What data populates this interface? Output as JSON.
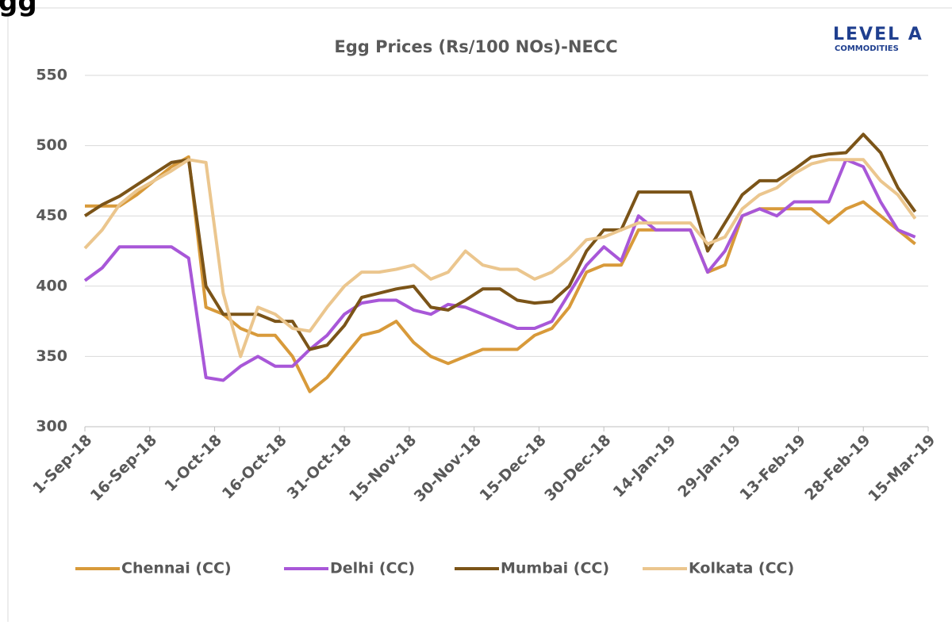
{
  "header": "gg",
  "logo": {
    "brand": "LEVEL A",
    "sub": "COMMODITIES"
  },
  "chart_data": {
    "type": "line",
    "title": "Egg Prices (Rs/100 NOs)-NECC",
    "x": [
      "2018-09-01",
      "2018-09-05",
      "2018-09-09",
      "2018-09-13",
      "2018-09-17",
      "2018-09-21",
      "2018-09-25",
      "2018-09-29",
      "2018-10-03",
      "2018-10-07",
      "2018-10-11",
      "2018-10-15",
      "2018-10-19",
      "2018-10-23",
      "2018-10-27",
      "2018-10-31",
      "2018-11-04",
      "2018-11-08",
      "2018-11-12",
      "2018-11-16",
      "2018-11-20",
      "2018-11-24",
      "2018-11-28",
      "2018-12-02",
      "2018-12-06",
      "2018-12-10",
      "2018-12-14",
      "2018-12-18",
      "2018-12-22",
      "2018-12-26",
      "2018-12-30",
      "2019-01-03",
      "2019-01-07",
      "2019-01-11",
      "2019-01-15",
      "2019-01-19",
      "2019-01-23",
      "2019-01-27",
      "2019-01-31",
      "2019-02-04",
      "2019-02-08",
      "2019-02-12",
      "2019-02-16",
      "2019-02-20",
      "2019-02-24",
      "2019-02-28",
      "2019-03-04",
      "2019-03-08",
      "2019-03-12"
    ],
    "series": [
      {
        "name": "Chennai (CC)",
        "color": "#d89a3a",
        "values": [
          457,
          457,
          457,
          465,
          475,
          485,
          492,
          385,
          380,
          370,
          365,
          365,
          350,
          325,
          335,
          350,
          365,
          368,
          375,
          360,
          350,
          345,
          350,
          355,
          355,
          355,
          365,
          370,
          385,
          410,
          415,
          415,
          440,
          440,
          440,
          440,
          410,
          415,
          450,
          455,
          455,
          455,
          455,
          445,
          455,
          460,
          450,
          440,
          430
        ]
      },
      {
        "name": "Delhi (CC)",
        "color": "#a857d8",
        "values": [
          404,
          413,
          428,
          428,
          428,
          428,
          420,
          335,
          333,
          343,
          350,
          343,
          343,
          355,
          365,
          380,
          388,
          390,
          390,
          383,
          380,
          387,
          385,
          380,
          375,
          370,
          370,
          375,
          395,
          415,
          428,
          418,
          450,
          440,
          440,
          440,
          410,
          425,
          450,
          455,
          450,
          460,
          460,
          460,
          490,
          485,
          460,
          440,
          435
        ]
      },
      {
        "name": "Mumbai (CC)",
        "color": "#7b5418",
        "values": [
          450,
          458,
          464,
          472,
          480,
          488,
          490,
          400,
          380,
          380,
          380,
          375,
          375,
          355,
          358,
          372,
          392,
          395,
          398,
          400,
          385,
          383,
          390,
          398,
          398,
          390,
          388,
          389,
          400,
          425,
          440,
          440,
          467,
          467,
          467,
          467,
          425,
          445,
          465,
          475,
          475,
          483,
          492,
          494,
          495,
          508,
          495,
          470,
          453
        ]
      },
      {
        "name": "Kolkata (CC)",
        "color": "#ebc68e",
        "values": [
          427,
          440,
          458,
          468,
          475,
          482,
          490,
          488,
          395,
          350,
          385,
          380,
          370,
          368,
          385,
          400,
          410,
          410,
          412,
          415,
          405,
          410,
          425,
          415,
          412,
          412,
          405,
          410,
          420,
          433,
          435,
          440,
          445,
          445,
          445,
          445,
          430,
          435,
          455,
          465,
          470,
          480,
          487,
          490,
          490,
          490,
          475,
          465,
          448
        ]
      }
    ],
    "xlim": [
      "2018-09-01",
      "2019-03-15"
    ],
    "xticks": [
      {
        "value": "2018-09-01",
        "label": "1-Sep-18"
      },
      {
        "value": "2018-09-16",
        "label": "16-Sep-18"
      },
      {
        "value": "2018-10-01",
        "label": "1-Oct-18"
      },
      {
        "value": "2018-10-16",
        "label": "16-Oct-18"
      },
      {
        "value": "2018-10-31",
        "label": "31-Oct-18"
      },
      {
        "value": "2018-11-15",
        "label": "15-Nov-18"
      },
      {
        "value": "2018-11-30",
        "label": "30-Nov-18"
      },
      {
        "value": "2018-12-15",
        "label": "15-Dec-18"
      },
      {
        "value": "2018-12-30",
        "label": "30-Dec-18"
      },
      {
        "value": "2019-01-14",
        "label": "14-Jan-19"
      },
      {
        "value": "2019-01-29",
        "label": "29-Jan-19"
      },
      {
        "value": "2019-02-13",
        "label": "13-Feb-19"
      },
      {
        "value": "2019-02-28",
        "label": "28-Feb-19"
      },
      {
        "value": "2019-03-15",
        "label": "15-Mar-19"
      }
    ],
    "ylim": [
      300,
      550
    ],
    "yticks": [
      300,
      350,
      400,
      450,
      500,
      550
    ],
    "grid": true,
    "legend": "bottom"
  }
}
